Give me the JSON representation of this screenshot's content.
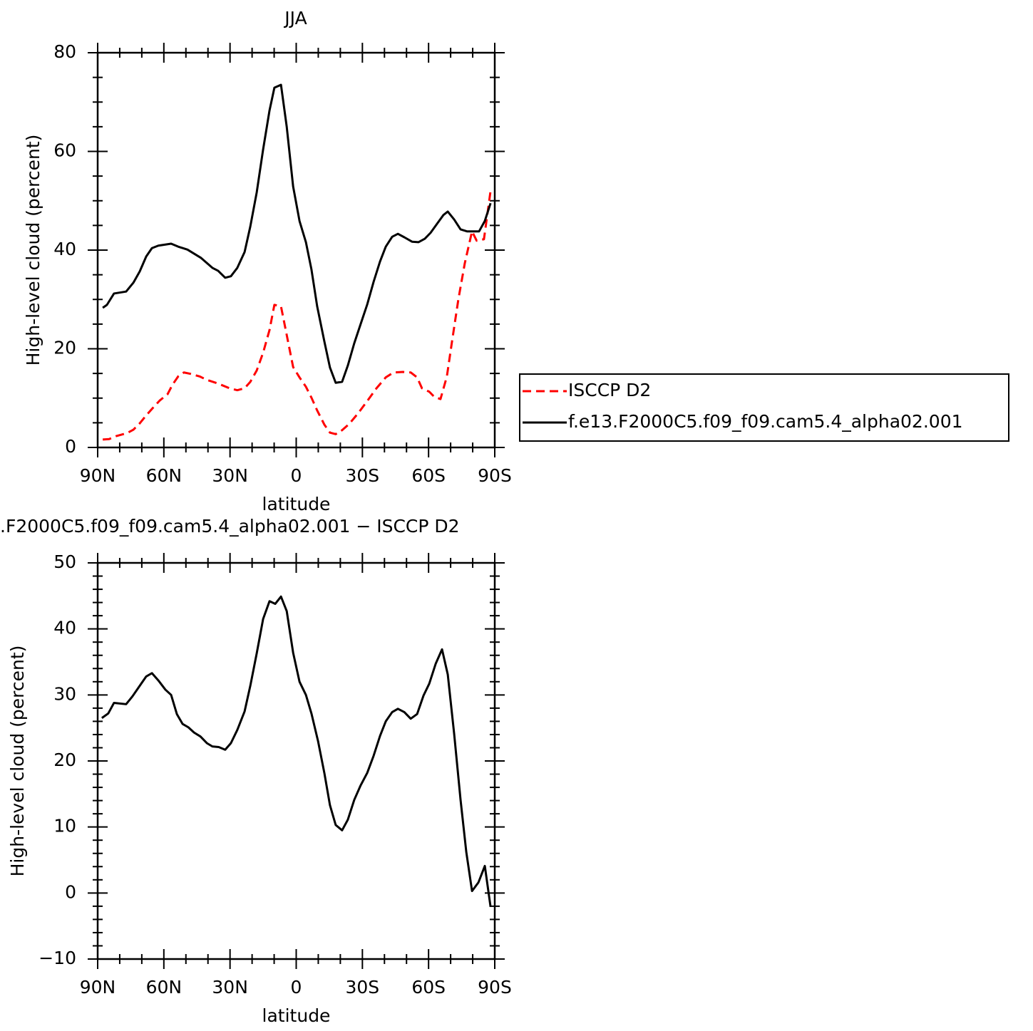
{
  "chart_data": [
    {
      "type": "line",
      "title": "JJA",
      "xlabel": "latitude",
      "ylabel": "High-level cloud (percent)",
      "xlim": [
        90,
        -90
      ],
      "ylim": [
        0,
        80
      ],
      "xticks": [
        {
          "value": 90,
          "label": "90N"
        },
        {
          "value": 60,
          "label": "60N"
        },
        {
          "value": 30,
          "label": "30N"
        },
        0,
        {
          "value": -30,
          "label": "30S"
        },
        {
          "value": -60,
          "label": "60S"
        },
        {
          "value": -90,
          "label": "90S"
        }
      ],
      "xminorticks": [
        80,
        70,
        50,
        40,
        20,
        10,
        -10,
        -20,
        -40,
        -50,
        -70,
        -80
      ],
      "yticks": [
        0,
        20,
        40,
        60,
        80
      ],
      "yminorticks": [
        5,
        10,
        15,
        25,
        30,
        35,
        45,
        50,
        55,
        65,
        70,
        75
      ],
      "legend": "right",
      "series": [
        {
          "name": "ISCCP D2",
          "color": "#ff0000",
          "linestyle": "dashed",
          "x": [
            87.7,
            84.8,
            81.6,
            76.7,
            73.8,
            70.9,
            68.0,
            64.8,
            61.9,
            58.3,
            56.1,
            53.5,
            50.9,
            47.7,
            43.8,
            40.5,
            35.7,
            30.2,
            26.7,
            23.4,
            20.8,
            17.9,
            15.0,
            12.1,
            9.9,
            6.9,
            4.3,
            1.4,
            -1.5,
            -4.4,
            -6.9,
            -9.5,
            -12.8,
            -15.3,
            -17.9,
            -20.8,
            -24.1,
            -28.0,
            -32.2,
            -36.4,
            -40.6,
            -44.1,
            -48.3,
            -51.9,
            -54.8,
            -57.0,
            -60.3,
            -62.5,
            -65.4,
            -68.3,
            -70.6,
            -73.5,
            -76.4,
            -79.7,
            -81.8,
            -85.1,
            -88.1
          ],
          "values": [
            1.6,
            1.7,
            2.3,
            2.9,
            3.6,
            4.9,
            6.5,
            8.1,
            9.5,
            10.8,
            12.7,
            14.4,
            15.2,
            14.9,
            14.4,
            13.7,
            13.0,
            12.0,
            11.6,
            12.0,
            13.3,
            15.6,
            19.2,
            23.8,
            28.9,
            28.6,
            22.8,
            16.3,
            14.2,
            12.3,
            10.1,
            7.5,
            4.6,
            3.0,
            2.7,
            3.5,
            4.8,
            6.9,
            9.4,
            12.0,
            14.2,
            15.2,
            15.3,
            15.2,
            14.2,
            12.0,
            11.3,
            10.3,
            9.8,
            14.4,
            21.4,
            30.0,
            37.3,
            43.8,
            41.9,
            42.2,
            52.0
          ]
        },
        {
          "name": "f.e13.F2000C5.f09_f09.cam5.4_alpha02.001",
          "color": "#000000",
          "linestyle": "solid",
          "x": [
            87.7,
            85.8,
            82.6,
            77.1,
            73.8,
            70.9,
            68.0,
            65.4,
            62.5,
            56.7,
            53.5,
            49.3,
            43.1,
            38.0,
            35.4,
            32.2,
            29.6,
            26.7,
            23.4,
            20.8,
            17.9,
            15.0,
            12.1,
            9.9,
            6.9,
            4.3,
            1.4,
            -1.5,
            -4.4,
            -6.9,
            -9.5,
            -12.8,
            -15.3,
            -17.9,
            -20.8,
            -23.4,
            -26.3,
            -29.2,
            -32.2,
            -35.1,
            -38.0,
            -40.6,
            -43.5,
            -46.1,
            -49.0,
            -52.5,
            -55.4,
            -58.3,
            -60.9,
            -63.8,
            -66.7,
            -68.7,
            -71.6,
            -74.5,
            -77.4,
            -82.9,
            -85.5,
            -88.1
          ],
          "values": [
            28.3,
            28.9,
            31.2,
            31.6,
            33.4,
            35.7,
            38.7,
            40.4,
            40.9,
            41.3,
            40.7,
            40.1,
            38.4,
            36.4,
            35.8,
            34.4,
            34.7,
            36.4,
            39.6,
            44.8,
            51.7,
            60.4,
            68.3,
            72.9,
            73.5,
            65.0,
            52.9,
            45.9,
            41.6,
            36.1,
            28.6,
            21.4,
            16.2,
            13.1,
            13.3,
            16.6,
            21.1,
            25.0,
            29.0,
            33.6,
            37.7,
            40.7,
            42.7,
            43.3,
            42.6,
            41.7,
            41.6,
            42.3,
            43.5,
            45.3,
            47.1,
            47.8,
            46.2,
            44.2,
            43.8,
            43.8,
            45.9,
            49.5
          ]
        }
      ]
    },
    {
      "type": "line",
      "title": ".F2000C5.f09_f09.cam5.4_alpha02.001 − ISCCP D2",
      "xlabel": "latitude",
      "ylabel": "High-level cloud (percent)",
      "xlim": [
        90,
        -90
      ],
      "ylim": [
        -10,
        50
      ],
      "xticks": [
        {
          "value": 90,
          "label": "90N"
        },
        {
          "value": 60,
          "label": "60N"
        },
        {
          "value": 30,
          "label": "30N"
        },
        0,
        {
          "value": -30,
          "label": "30S"
        },
        {
          "value": -60,
          "label": "60S"
        },
        {
          "value": -90,
          "label": "90S"
        }
      ],
      "xminorticks": [
        80,
        70,
        50,
        40,
        20,
        10,
        -10,
        -20,
        -40,
        -50,
        -70,
        -80
      ],
      "yticks": [
        {
          "value": -10,
          "label": "−10"
        },
        0,
        10,
        20,
        30,
        40,
        50
      ],
      "yminorticks": [
        -8,
        -6,
        -4,
        -2,
        2,
        4,
        6,
        8,
        12,
        14,
        16,
        18,
        22,
        24,
        26,
        28,
        32,
        34,
        36,
        38,
        42,
        44,
        46,
        48
      ],
      "series": [
        {
          "color": "#000000",
          "linestyle": "solid",
          "x": [
            88.1,
            85.2,
            82.6,
            77.1,
            74.2,
            70.9,
            68.0,
            65.4,
            62.5,
            59.3,
            56.7,
            54.1,
            51.5,
            48.9,
            46.3,
            43.4,
            40.5,
            38.0,
            35.1,
            32.2,
            29.6,
            26.7,
            23.4,
            20.8,
            17.9,
            15.0,
            12.1,
            9.5,
            6.9,
            4.3,
            1.4,
            -1.5,
            -4.4,
            -6.9,
            -9.9,
            -12.8,
            -15.3,
            -17.9,
            -20.8,
            -23.4,
            -26.3,
            -29.2,
            -32.2,
            -35.1,
            -38.0,
            -40.6,
            -43.5,
            -46.1,
            -49.0,
            -51.9,
            -54.8,
            -57.7,
            -60.3,
            -63.2,
            -66.1,
            -68.7,
            -71.6,
            -74.5,
            -77.1,
            -79.7,
            -82.6,
            -85.5,
            -88.1
          ],
          "values": [
            26.5,
            27.2,
            28.8,
            28.6,
            29.8,
            31.4,
            32.8,
            33.3,
            32.2,
            30.8,
            30.0,
            27.1,
            25.6,
            25.1,
            24.3,
            23.7,
            22.7,
            22.2,
            22.1,
            21.7,
            22.7,
            24.7,
            27.5,
            31.4,
            36.3,
            41.5,
            44.2,
            43.8,
            44.9,
            42.7,
            36.4,
            32.0,
            30.0,
            27.2,
            23.0,
            18.1,
            13.3,
            10.3,
            9.5,
            11.1,
            14.1,
            16.3,
            18.2,
            20.8,
            23.8,
            26.0,
            27.4,
            27.9,
            27.4,
            26.4,
            27.1,
            29.9,
            31.7,
            34.7,
            36.9,
            33.1,
            24.1,
            14.1,
            6.2,
            0.3,
            1.6,
            4.1,
            -2.1
          ]
        }
      ]
    }
  ]
}
